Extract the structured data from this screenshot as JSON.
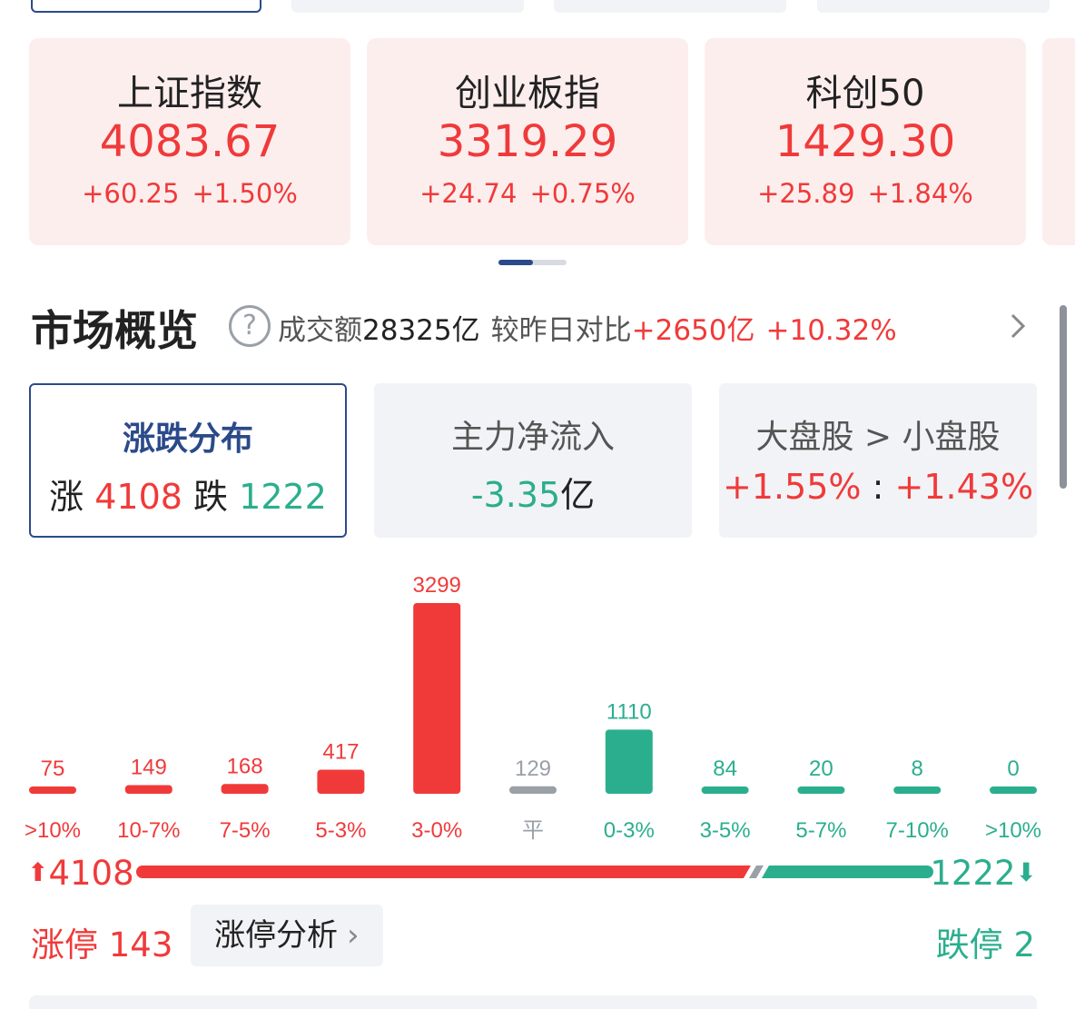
{
  "indices": [
    {
      "name": "上证指数",
      "value": "4083.67",
      "change": "+60.25",
      "pct": "+1.50%"
    },
    {
      "name": "创业板指",
      "value": "3319.29",
      "change": "+24.74",
      "pct": "+0.75%"
    },
    {
      "name": "科创50",
      "value": "1429.30",
      "change": "+25.89",
      "pct": "+1.84%"
    }
  ],
  "overview": {
    "title": "市场概览",
    "help_icon": "?",
    "volume_label": "成交额",
    "volume_value": "28325亿",
    "compare_label": "较昨日对比",
    "compare_value": "+2650亿",
    "compare_pct": "+10.32%"
  },
  "stat_cards": {
    "distribution": {
      "title": "涨跌分布",
      "up_label": "涨",
      "up_value": "4108",
      "down_label": "跌",
      "down_value": "1222"
    },
    "main_flow": {
      "title": "主力净流入",
      "value": "-3.35",
      "unit": "亿"
    },
    "cap_compare": {
      "title": "大盘股 > 小盘股",
      "large": "+1.55%",
      "sep": ":",
      "small": "+1.43%"
    }
  },
  "chart_data": {
    "type": "bar",
    "categories": [
      ">10%",
      "10-7%",
      "7-5%",
      "5-3%",
      "3-0%",
      "平",
      "0-3%",
      "3-5%",
      "5-7%",
      "7-10%",
      ">10%"
    ],
    "values": [
      75,
      149,
      168,
      417,
      3299,
      129,
      1110,
      84,
      20,
      8,
      0
    ],
    "colors": [
      "#f03a3a",
      "#f03a3a",
      "#f03a3a",
      "#f03a3a",
      "#f03a3a",
      "#9aa0a8",
      "#2bae8e",
      "#2bae8e",
      "#2bae8e",
      "#2bae8e",
      "#2bae8e"
    ],
    "title": "",
    "xlabel": "",
    "ylabel": ""
  },
  "totals": {
    "up": "4108",
    "down": "1222",
    "up_ratio": 0.771
  },
  "limits": {
    "up_label": "涨停",
    "up_value": "143",
    "analysis_label": "涨停分析",
    "down_label": "跌停",
    "down_value": "2"
  },
  "colors": {
    "red": "#f03a3a",
    "green": "#2bae8e",
    "neutral": "#9aa0a8",
    "accent": "#2b4a8a"
  }
}
